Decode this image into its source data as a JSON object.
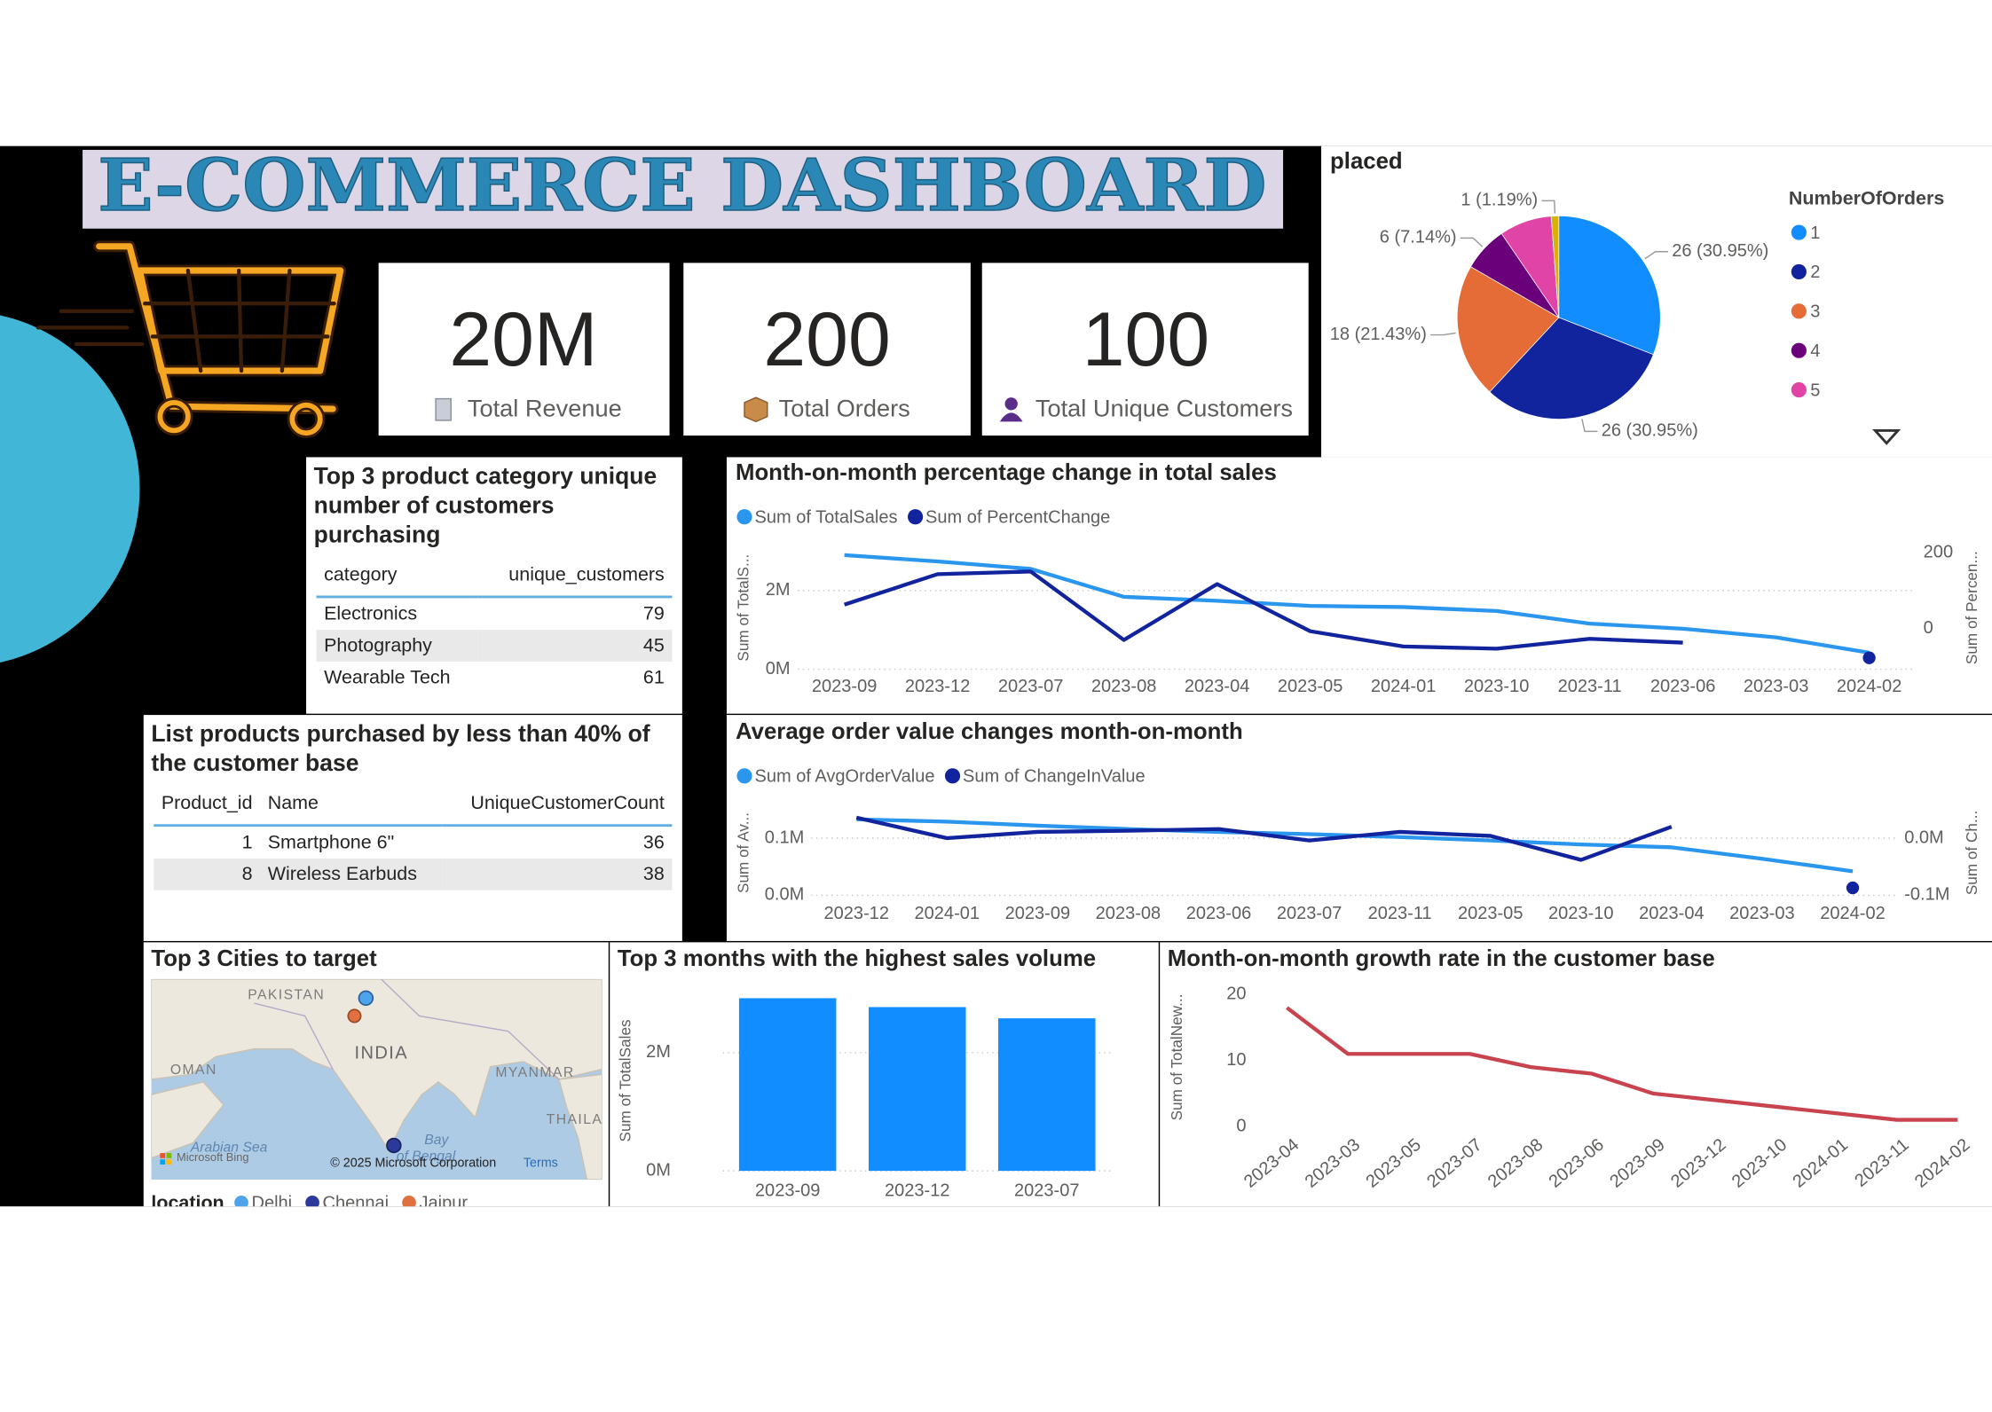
{
  "header": {
    "title": "E-COMMERCE DASHBOARD"
  },
  "kpis": [
    {
      "value": "20M",
      "label": "Total Revenue"
    },
    {
      "value": "200",
      "label": "Total Orders"
    },
    {
      "value": "100",
      "label": "Total Unique Customers"
    }
  ],
  "tables": [
    {
      "title": "Top 3 product category unique number of customers purchasing",
      "columns": [
        "category",
        "unique_customers"
      ],
      "rows": [
        [
          "Electronics",
          79
        ],
        [
          "Photography",
          45
        ],
        [
          "Wearable Tech",
          61
        ]
      ]
    },
    {
      "title": "List products purchased by less than 40% of the customer base",
      "columns": [
        "Product_id",
        "Name",
        "UniqueCustomerCount"
      ],
      "rows": [
        [
          1,
          "Smartphone 6\"",
          36
        ],
        [
          8,
          "Wireless Earbuds",
          38
        ]
      ]
    }
  ],
  "map": {
    "title": "Top 3 Cities to target",
    "legend_title": "location",
    "locations": [
      {
        "name": "Delhi",
        "color": "#4fa3ea"
      },
      {
        "name": "Chennai",
        "color": "#2b3a9a"
      },
      {
        "name": "Jaipur",
        "color": "#e07040"
      }
    ],
    "place_labels": [
      "PAKISTAN",
      "INDIA",
      "OMAN",
      "MYANMAR",
      "THAILA",
      "Arabian Sea",
      "Bay",
      "of Bengal"
    ],
    "brand": "Microsoft Bing",
    "attribution": "© 2025 Microsoft Corporation",
    "terms": "Terms"
  },
  "chart_data": [
    {
      "type": "pie",
      "title": "placed",
      "legend_title": "NumberOfOrders",
      "categories": [
        "1",
        "2",
        "3",
        "4",
        "5",
        null
      ],
      "values": [
        26,
        26,
        18,
        6,
        7,
        1
      ],
      "value_labels": [
        "26 (30.95%)",
        "26 (30.95%)",
        "18 (21.43%)",
        "6 (7.14%)",
        null,
        "1 (1.19%)"
      ],
      "colors": [
        "#118dff",
        "#12239e",
        "#e66c37",
        "#6b007b",
        "#e044a7",
        "#d9b300"
      ]
    },
    {
      "type": "line",
      "title": "Month-on-month percentage change in total sales",
      "y_label": "Sum of TotalS...",
      "y2_label": "Sum of Percen...",
      "categories": [
        "2023-09",
        "2023-12",
        "2023-07",
        "2023-08",
        "2023-04",
        "2023-05",
        "2024-01",
        "2023-10",
        "2023-11",
        "2023-06",
        "2023-03",
        "2024-02"
      ],
      "series": [
        {
          "name": "Sum of TotalSales",
          "color": "#2b96ee",
          "values": [
            2900000,
            2740000,
            2550000,
            1840000,
            1740000,
            1610000,
            1580000,
            1480000,
            1160000,
            1030000,
            810000,
            420000
          ]
        },
        {
          "name": "Sum of PercentChange",
          "color": "#12239e",
          "axis": "y2",
          "values": [
            63,
            143,
            150,
            -30,
            117,
            -7,
            -47,
            -53,
            -27,
            -37,
            null,
            -77
          ]
        }
      ],
      "ylim": [
        0,
        3130000
      ],
      "yticks": [
        {
          "value": 0,
          "label": "0M"
        },
        {
          "value": 2000000,
          "label": "2M"
        }
      ],
      "y2lim": [
        -107,
        217
      ],
      "y2ticks": [
        0,
        200
      ],
      "grid": true
    },
    {
      "type": "line",
      "title": "Average order value changes month-on-month",
      "y_label": "Sum of Av...",
      "y2_label": "Sum of Ch...",
      "categories": [
        "2023-12",
        "2024-01",
        "2023-09",
        "2023-08",
        "2023-06",
        "2023-07",
        "2023-11",
        "2023-05",
        "2023-10",
        "2023-04",
        "2023-03",
        "2024-02"
      ],
      "series": [
        {
          "name": "Sum of AvgOrderValue",
          "color": "#2b96ee",
          "values": [
            133000,
            129000,
            122000,
            116000,
            111000,
            107000,
            102000,
            96000,
            89000,
            84000,
            64000,
            42000
          ]
        },
        {
          "name": "Sum of ChangeInValue",
          "color": "#12239e",
          "axis": "y2",
          "values": [
            36000,
            0,
            11000,
            13000,
            16000,
            -4000,
            11000,
            4000,
            -38000,
            20000,
            null,
            -87000
          ]
        }
      ],
      "ylim": [
        0,
        149000
      ],
      "yticks": [
        {
          "value": 0,
          "label": "0.0M"
        },
        {
          "value": 100000,
          "label": "0.1M"
        }
      ],
      "y2lim": [
        -100000,
        49000
      ],
      "y2ticks": [
        {
          "value": 0,
          "label": "0.0M"
        },
        {
          "value": -100000,
          "label": "-0.1M"
        }
      ],
      "grid": true
    },
    {
      "type": "bar",
      "title": "Top 3 months with the highest sales volume",
      "y_label": "Sum of TotalSales",
      "categories": [
        "2023-09",
        "2023-12",
        "2023-07"
      ],
      "values": [
        2920000,
        2770000,
        2580000
      ],
      "color": "#118dff",
      "ylim": [
        0,
        3050000
      ],
      "yticks": [
        {
          "value": 0,
          "label": "0M"
        },
        {
          "value": 2000000,
          "label": "2M"
        }
      ],
      "grid": true
    },
    {
      "type": "line",
      "title": "Month-on-month growth rate in the customer base",
      "y_label": "Sum of TotalNew...",
      "categories": [
        "2023-04",
        "2023-03",
        "2023-05",
        "2023-07",
        "2023-08",
        "2023-06",
        "2023-09",
        "2023-12",
        "2023-10",
        "2024-01",
        "2023-11",
        "2024-02"
      ],
      "values": [
        18,
        11,
        11,
        11,
        9,
        8,
        5,
        4,
        3,
        2,
        1,
        1
      ],
      "color": "#c8434e",
      "ylim": [
        0,
        21
      ],
      "yticks": [
        0,
        10,
        20
      ],
      "grid": false
    }
  ]
}
